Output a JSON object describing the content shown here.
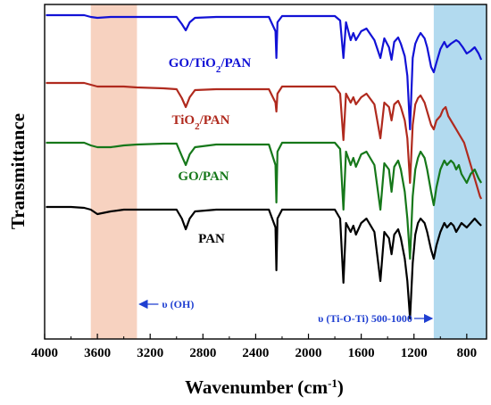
{
  "chart_data": {
    "type": "line",
    "xlabel": "Wavenumber (cm",
    "xlabel_sup": "-1",
    "xlabel_end": ")",
    "ylabel": "Transmittance",
    "xlim": [
      4000,
      650
    ],
    "x_ticks": [
      4000,
      3600,
      3200,
      2800,
      2400,
      2000,
      1600,
      1200,
      800
    ],
    "x_tick_labels": [
      "4000",
      "3600",
      "3200",
      "2800",
      "2400",
      "2000",
      "1600",
      "1200",
      "800"
    ],
    "y_ticks_shown": false,
    "regions": [
      {
        "x_from": 3650,
        "x_to": 3300,
        "color": "#f7d2c0",
        "label": "υ (OH)"
      },
      {
        "x_from": 1050,
        "x_to": 650,
        "color": "#b2daef",
        "label": "υ (Ti-O-Ti) 500-1000"
      }
    ],
    "series": [
      {
        "name": "GO/TiO2/PAN",
        "label_main": "GO/TiO",
        "label_sub": "2",
        "label_tail": "/PAN",
        "color": "#1212d6",
        "points": [
          [
            3990,
            12
          ],
          [
            3800,
            12
          ],
          [
            3700,
            12
          ],
          [
            3650,
            14
          ],
          [
            3600,
            15
          ],
          [
            3500,
            14
          ],
          [
            3400,
            14
          ],
          [
            3200,
            14
          ],
          [
            3000,
            14
          ],
          [
            2960,
            22
          ],
          [
            2930,
            29
          ],
          [
            2900,
            20
          ],
          [
            2860,
            15
          ],
          [
            2700,
            14
          ],
          [
            2500,
            14
          ],
          [
            2300,
            14
          ],
          [
            2250,
            30
          ],
          [
            2243,
            60
          ],
          [
            2235,
            20
          ],
          [
            2200,
            13
          ],
          [
            2000,
            13
          ],
          [
            1800,
            13
          ],
          [
            1760,
            18
          ],
          [
            1735,
            60
          ],
          [
            1715,
            20
          ],
          [
            1680,
            40
          ],
          [
            1660,
            32
          ],
          [
            1640,
            40
          ],
          [
            1600,
            30
          ],
          [
            1560,
            27
          ],
          [
            1500,
            40
          ],
          [
            1455,
            60
          ],
          [
            1425,
            38
          ],
          [
            1390,
            48
          ],
          [
            1370,
            62
          ],
          [
            1350,
            42
          ],
          [
            1320,
            37
          ],
          [
            1300,
            44
          ],
          [
            1270,
            58
          ],
          [
            1250,
            80
          ],
          [
            1230,
            140
          ],
          [
            1210,
            60
          ],
          [
            1190,
            44
          ],
          [
            1170,
            37
          ],
          [
            1150,
            32
          ],
          [
            1120,
            38
          ],
          [
            1100,
            48
          ],
          [
            1070,
            70
          ],
          [
            1050,
            76
          ],
          [
            1030,
            65
          ],
          [
            1000,
            50
          ],
          [
            970,
            42
          ],
          [
            950,
            48
          ],
          [
            920,
            44
          ],
          [
            880,
            40
          ],
          [
            860,
            42
          ],
          [
            830,
            48
          ],
          [
            800,
            55
          ],
          [
            770,
            52
          ],
          [
            740,
            48
          ],
          [
            710,
            55
          ],
          [
            690,
            62
          ]
        ]
      },
      {
        "name": "TiO2/PAN",
        "label_main": "TiO",
        "label_sub": "2",
        "label_tail": "/PAN",
        "color": "#b02a1e",
        "points": [
          [
            3990,
            88
          ],
          [
            3800,
            88
          ],
          [
            3700,
            88
          ],
          [
            3650,
            90
          ],
          [
            3600,
            92
          ],
          [
            3500,
            92
          ],
          [
            3400,
            92
          ],
          [
            3300,
            93
          ],
          [
            3100,
            94
          ],
          [
            3000,
            95
          ],
          [
            2960,
            105
          ],
          [
            2930,
            115
          ],
          [
            2900,
            104
          ],
          [
            2860,
            96
          ],
          [
            2700,
            95
          ],
          [
            2500,
            95
          ],
          [
            2300,
            95
          ],
          [
            2250,
            110
          ],
          [
            2243,
            120
          ],
          [
            2235,
            100
          ],
          [
            2200,
            92
          ],
          [
            2000,
            92
          ],
          [
            1800,
            92
          ],
          [
            1760,
            100
          ],
          [
            1735,
            152
          ],
          [
            1715,
            100
          ],
          [
            1680,
            110
          ],
          [
            1660,
            104
          ],
          [
            1640,
            112
          ],
          [
            1600,
            104
          ],
          [
            1560,
            100
          ],
          [
            1500,
            112
          ],
          [
            1455,
            150
          ],
          [
            1425,
            110
          ],
          [
            1390,
            115
          ],
          [
            1370,
            130
          ],
          [
            1350,
            112
          ],
          [
            1320,
            108
          ],
          [
            1300,
            115
          ],
          [
            1270,
            130
          ],
          [
            1250,
            150
          ],
          [
            1230,
            200
          ],
          [
            1210,
            135
          ],
          [
            1190,
            112
          ],
          [
            1170,
            105
          ],
          [
            1150,
            102
          ],
          [
            1120,
            110
          ],
          [
            1100,
            120
          ],
          [
            1070,
            135
          ],
          [
            1050,
            140
          ],
          [
            1030,
            130
          ],
          [
            1000,
            125
          ],
          [
            980,
            118
          ],
          [
            960,
            115
          ],
          [
            940,
            125
          ],
          [
            900,
            135
          ],
          [
            860,
            145
          ],
          [
            820,
            155
          ],
          [
            780,
            175
          ],
          [
            740,
            195
          ],
          [
            700,
            215
          ],
          [
            690,
            218
          ]
        ]
      },
      {
        "name": "GO/PAN",
        "label_main": "GO/PAN",
        "label_sub": "",
        "label_tail": "",
        "color": "#16781a",
        "points": [
          [
            3990,
            155
          ],
          [
            3800,
            155
          ],
          [
            3700,
            155
          ],
          [
            3650,
            158
          ],
          [
            3600,
            160
          ],
          [
            3500,
            160
          ],
          [
            3400,
            158
          ],
          [
            3300,
            157
          ],
          [
            3100,
            156
          ],
          [
            3000,
            156
          ],
          [
            2960,
            170
          ],
          [
            2930,
            180
          ],
          [
            2900,
            168
          ],
          [
            2860,
            160
          ],
          [
            2700,
            157
          ],
          [
            2500,
            157
          ],
          [
            2300,
            157
          ],
          [
            2250,
            180
          ],
          [
            2243,
            222
          ],
          [
            2235,
            165
          ],
          [
            2200,
            155
          ],
          [
            2000,
            155
          ],
          [
            1800,
            155
          ],
          [
            1760,
            162
          ],
          [
            1735,
            230
          ],
          [
            1715,
            165
          ],
          [
            1680,
            180
          ],
          [
            1660,
            172
          ],
          [
            1640,
            182
          ],
          [
            1600,
            168
          ],
          [
            1560,
            165
          ],
          [
            1500,
            180
          ],
          [
            1455,
            230
          ],
          [
            1425,
            178
          ],
          [
            1390,
            185
          ],
          [
            1370,
            210
          ],
          [
            1350,
            182
          ],
          [
            1320,
            175
          ],
          [
            1300,
            185
          ],
          [
            1270,
            210
          ],
          [
            1250,
            240
          ],
          [
            1230,
            285
          ],
          [
            1210,
            215
          ],
          [
            1190,
            185
          ],
          [
            1170,
            172
          ],
          [
            1150,
            165
          ],
          [
            1120,
            172
          ],
          [
            1100,
            185
          ],
          [
            1070,
            210
          ],
          [
            1050,
            225
          ],
          [
            1030,
            205
          ],
          [
            1000,
            185
          ],
          [
            970,
            175
          ],
          [
            950,
            180
          ],
          [
            920,
            175
          ],
          [
            900,
            178
          ],
          [
            880,
            185
          ],
          [
            860,
            180
          ],
          [
            840,
            190
          ],
          [
            800,
            200
          ],
          [
            770,
            190
          ],
          [
            740,
            185
          ],
          [
            710,
            195
          ],
          [
            690,
            200
          ]
        ]
      },
      {
        "name": "PAN",
        "label_main": "PAN",
        "label_sub": "",
        "label_tail": "",
        "color": "#000000",
        "points": [
          [
            3990,
            227
          ],
          [
            3800,
            227
          ],
          [
            3700,
            228
          ],
          [
            3650,
            230
          ],
          [
            3600,
            235
          ],
          [
            3500,
            232
          ],
          [
            3400,
            230
          ],
          [
            3300,
            230
          ],
          [
            3100,
            230
          ],
          [
            3000,
            230
          ],
          [
            2960,
            240
          ],
          [
            2930,
            252
          ],
          [
            2900,
            240
          ],
          [
            2860,
            232
          ],
          [
            2700,
            230
          ],
          [
            2500,
            230
          ],
          [
            2300,
            230
          ],
          [
            2250,
            250
          ],
          [
            2243,
            298
          ],
          [
            2235,
            240
          ],
          [
            2200,
            230
          ],
          [
            2000,
            230
          ],
          [
            1800,
            230
          ],
          [
            1760,
            240
          ],
          [
            1735,
            312
          ],
          [
            1715,
            245
          ],
          [
            1680,
            255
          ],
          [
            1660,
            248
          ],
          [
            1640,
            258
          ],
          [
            1600,
            245
          ],
          [
            1560,
            240
          ],
          [
            1500,
            255
          ],
          [
            1455,
            310
          ],
          [
            1425,
            255
          ],
          [
            1390,
            262
          ],
          [
            1370,
            280
          ],
          [
            1350,
            258
          ],
          [
            1320,
            252
          ],
          [
            1300,
            262
          ],
          [
            1270,
            285
          ],
          [
            1250,
            310
          ],
          [
            1230,
            352
          ],
          [
            1210,
            290
          ],
          [
            1190,
            258
          ],
          [
            1170,
            245
          ],
          [
            1150,
            240
          ],
          [
            1120,
            245
          ],
          [
            1100,
            255
          ],
          [
            1070,
            275
          ],
          [
            1050,
            285
          ],
          [
            1030,
            270
          ],
          [
            1000,
            255
          ],
          [
            970,
            245
          ],
          [
            950,
            250
          ],
          [
            920,
            245
          ],
          [
            900,
            248
          ],
          [
            880,
            255
          ],
          [
            860,
            250
          ],
          [
            840,
            245
          ],
          [
            800,
            250
          ],
          [
            770,
            245
          ],
          [
            740,
            240
          ],
          [
            710,
            245
          ],
          [
            690,
            248
          ]
        ]
      }
    ]
  }
}
